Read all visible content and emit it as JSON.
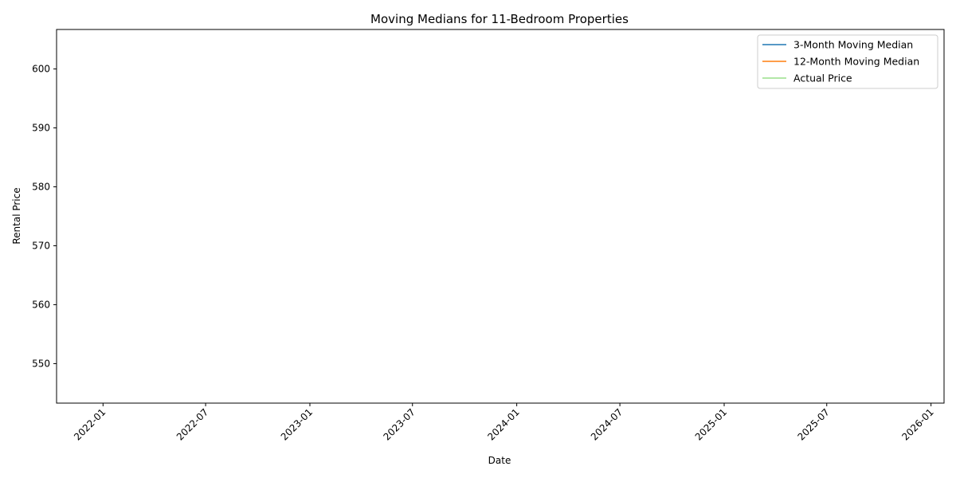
{
  "chart_data": {
    "type": "line",
    "title": "Moving Medians for 11-Bedroom Properties",
    "xlabel": "Date",
    "ylabel": "Rental Price",
    "x_ticks": [
      "2022-01",
      "2022-07",
      "2023-01",
      "2023-07",
      "2024-01",
      "2024-07",
      "2025-01",
      "2025-07",
      "2026-01"
    ],
    "xlim": [
      "2021-10-11",
      "2026-01-24"
    ],
    "y_ticks": [
      550,
      560,
      570,
      580,
      590,
      600
    ],
    "ylim": [
      543.3,
      606.7
    ],
    "grid": false,
    "legend_position": "top-right",
    "series": [
      {
        "name": "3-Month Moving Median",
        "color": "#1f77b4",
        "points": []
      },
      {
        "name": "12-Month Moving Median",
        "color": "#ff7f0e",
        "points": []
      },
      {
        "name": "Actual Price",
        "color": "#98df8a",
        "points": []
      }
    ]
  }
}
